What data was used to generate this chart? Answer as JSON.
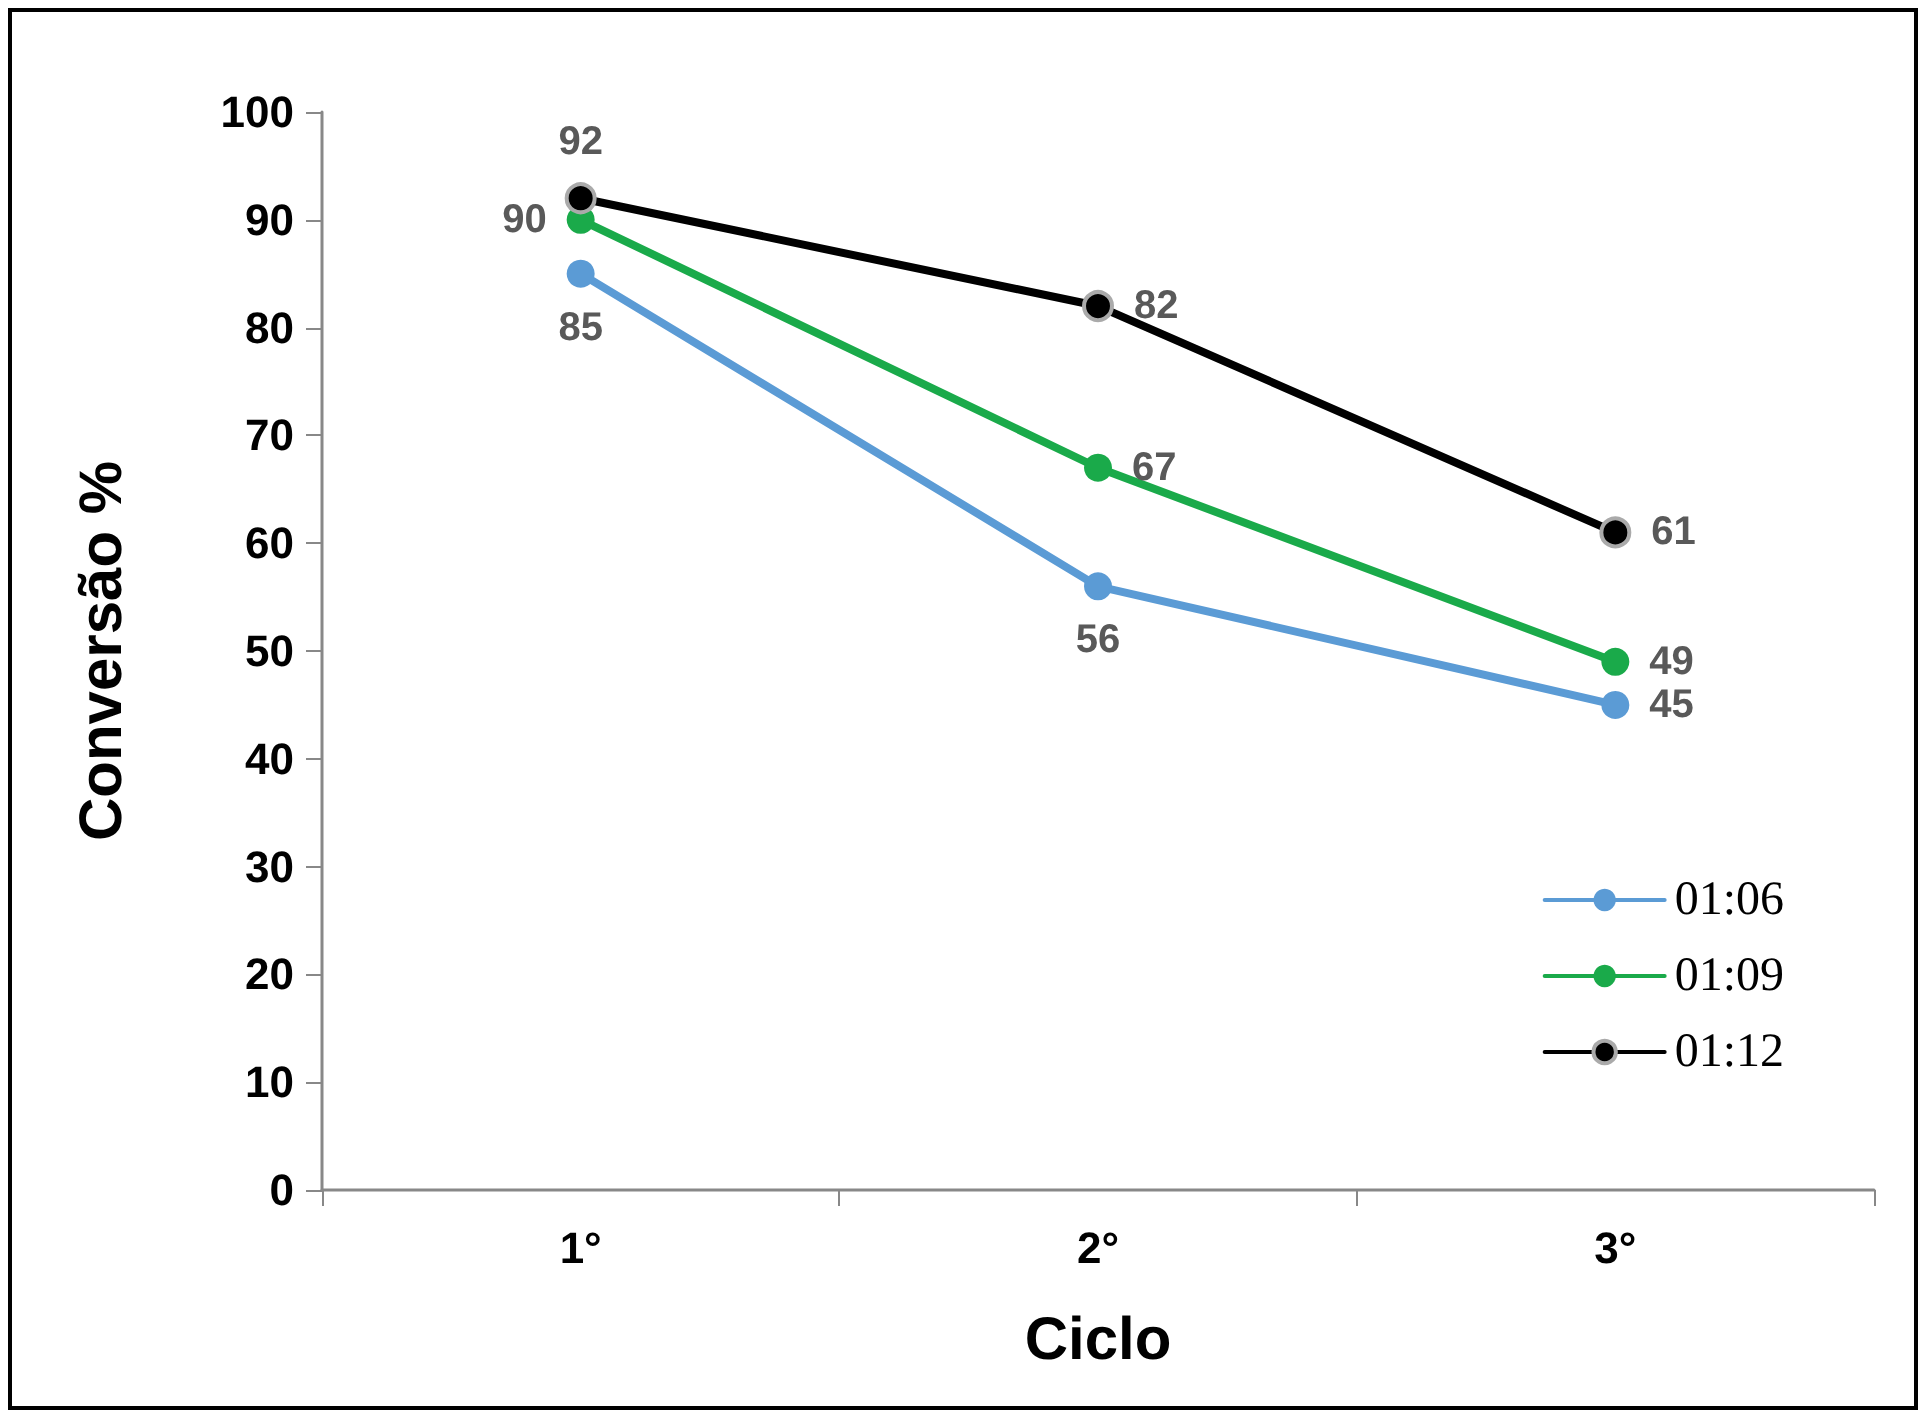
{
  "chart_data": {
    "type": "line",
    "xlabel": "Ciclo",
    "ylabel": "Conversão %",
    "categories": [
      "1°",
      "2°",
      "3°"
    ],
    "series": [
      {
        "name": "01:06",
        "color": "#5b9bd5",
        "values": [
          85,
          56,
          45
        ]
      },
      {
        "name": "01:09",
        "color": "#1aaa4a",
        "values": [
          90,
          67,
          49
        ]
      },
      {
        "name": "01:12",
        "color": "#000000",
        "values": [
          92,
          82,
          61
        ]
      }
    ],
    "ylim": [
      0,
      100
    ],
    "yticks": [
      0,
      10,
      20,
      30,
      40,
      50,
      60,
      70,
      80,
      90,
      100
    ],
    "grid": false,
    "legend": "bottom right",
    "marker": "circle",
    "line_style": "solid",
    "data_labels": true
  }
}
